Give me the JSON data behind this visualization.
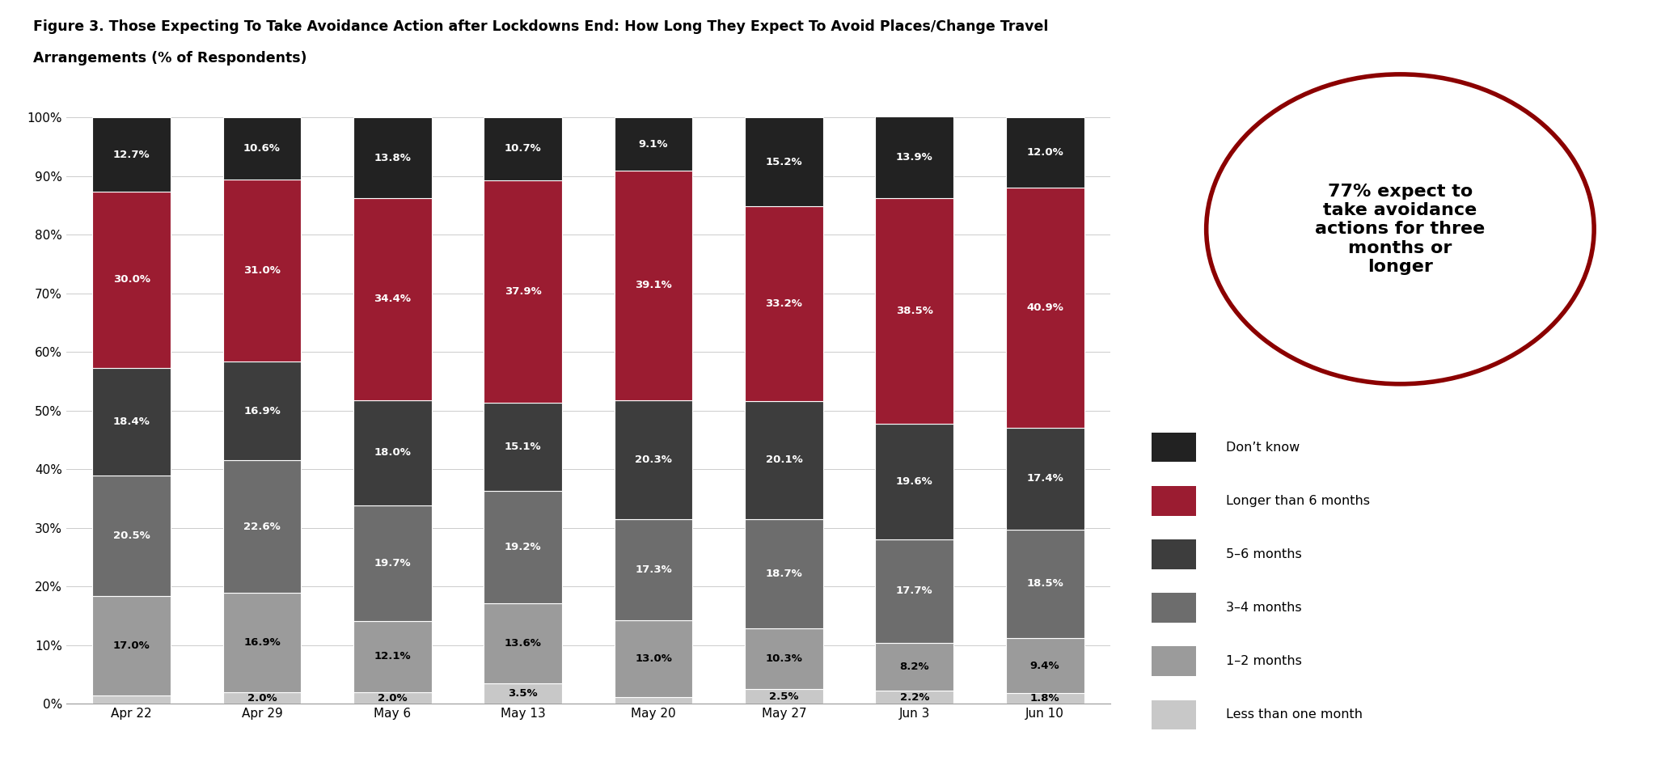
{
  "categories": [
    "Apr 22",
    "Apr 29",
    "May 6",
    "May 13",
    "May 20",
    "May 27",
    "Jun 3",
    "Jun 10"
  ],
  "series": {
    "Less than one month": [
      1.4,
      2.0,
      2.0,
      3.5,
      1.2,
      2.5,
      2.2,
      1.8
    ],
    "1-2 months": [
      17.0,
      16.9,
      12.1,
      13.6,
      13.0,
      10.3,
      8.2,
      9.4
    ],
    "3-4 months": [
      20.5,
      22.6,
      19.7,
      19.2,
      17.3,
      18.7,
      17.7,
      18.5
    ],
    "5-6 months": [
      18.4,
      16.9,
      18.0,
      15.1,
      20.3,
      20.1,
      19.6,
      17.4
    ],
    "Longer than 6 months": [
      30.0,
      31.0,
      34.4,
      37.9,
      39.1,
      33.2,
      38.5,
      40.9
    ],
    "Don't know": [
      12.7,
      10.6,
      13.8,
      10.7,
      9.1,
      15.2,
      13.9,
      12.0
    ]
  },
  "colors": {
    "Less than one month": "#c8c8c8",
    "1-2 months": "#9b9b9b",
    "3-4 months": "#6d6d6d",
    "5-6 months": "#3d3d3d",
    "Longer than 6 months": "#9b1c31",
    "Don't know": "#222222"
  },
  "label_colors": {
    "Less than one month": "#000000",
    "1-2 months": "#000000",
    "3-4 months": "#ffffff",
    "5-6 months": "#ffffff",
    "Longer than 6 months": "#ffffff",
    "Don't know": "#ffffff"
  },
  "title_line1": "Figure 3. Those Expecting To Take Avoidance Action after Lockdowns End: How Long They Expect To Avoid Places/Change Travel",
  "title_line2": "Arrangements (% of Respondents)",
  "ylim": [
    0,
    100
  ],
  "yticks": [
    0,
    10,
    20,
    30,
    40,
    50,
    60,
    70,
    80,
    90,
    100
  ],
  "ytick_labels": [
    "0%",
    "10%",
    "20%",
    "30%",
    "40%",
    "50%",
    "60%",
    "70%",
    "80%",
    "90%",
    "100%"
  ],
  "annotation_text": "77% expect to\ntake avoidance\nactions for three\nmonths or\nlonger",
  "annotation_circle_color": "#8b0000",
  "layer_order": [
    "Less than one month",
    "1-2 months",
    "3-4 months",
    "5-6 months",
    "Longer than 6 months",
    "Don't know"
  ],
  "legend_order": [
    "Don't know",
    "Longer than 6 months",
    "5-6 months",
    "3-4 months",
    "1-2 months",
    "Less than one month"
  ],
  "legend_labels": [
    "Don’t know",
    "Longer than 6 months",
    "5–6 months",
    "3–4 months",
    "1–2 months",
    "Less than one month"
  ]
}
